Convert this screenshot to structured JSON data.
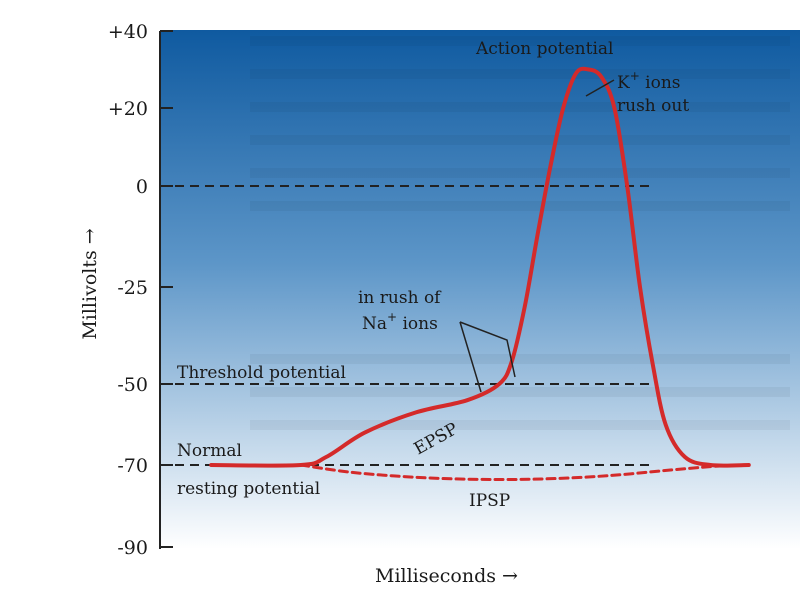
{
  "chart_data": {
    "type": "line",
    "title": "",
    "xlabel": "Milliseconds",
    "ylabel": "Millivolts",
    "ylim": [
      -90,
      40
    ],
    "xlim": [
      0,
      10
    ],
    "yticks": [
      {
        "value": 40,
        "label": "+40"
      },
      {
        "value": 20,
        "label": "+20"
      },
      {
        "value": 0,
        "label": "0"
      },
      {
        "value": -25,
        "label": "-25"
      },
      {
        "value": -50,
        "label": "-50"
      },
      {
        "value": -70,
        "label": "-70"
      },
      {
        "value": -90,
        "label": "-90"
      }
    ],
    "reference_lines": [
      {
        "value": 0,
        "style": "dashed"
      },
      {
        "value": -50,
        "style": "dashed",
        "label": "Threshold potential"
      },
      {
        "value": -70,
        "style": "dashed",
        "label": [
          "Normal",
          "resting potential"
        ]
      }
    ],
    "series": [
      {
        "style": "solid",
        "color": "#d42a2a",
        "points": [
          [
            0.8,
            -70
          ],
          [
            2.2,
            -70
          ],
          [
            2.6,
            -68
          ],
          [
            3.2,
            -62
          ],
          [
            4.0,
            -57
          ],
          [
            4.8,
            -54
          ],
          [
            5.3,
            -50
          ],
          [
            5.5,
            -44
          ],
          [
            5.7,
            -30
          ],
          [
            5.9,
            -12
          ],
          [
            6.1,
            5
          ],
          [
            6.3,
            20
          ],
          [
            6.5,
            29
          ],
          [
            6.7,
            30
          ],
          [
            6.9,
            28
          ],
          [
            7.1,
            20
          ],
          [
            7.3,
            0
          ],
          [
            7.5,
            -25
          ],
          [
            7.7,
            -45
          ],
          [
            7.9,
            -60
          ],
          [
            8.2,
            -68
          ],
          [
            8.6,
            -70
          ],
          [
            9.2,
            -70
          ]
        ]
      },
      {
        "style": "dashed",
        "color": "#d42a2a",
        "points": [
          [
            2.2,
            -70
          ],
          [
            3.0,
            -71.8
          ],
          [
            4.0,
            -73
          ],
          [
            5.0,
            -73.5
          ],
          [
            6.0,
            -73.4
          ],
          [
            7.0,
            -72.6
          ],
          [
            8.0,
            -71.2
          ],
          [
            8.6,
            -70.4
          ],
          [
            9.0,
            -70
          ]
        ]
      }
    ],
    "annotations": {
      "action_potential": "Action potential",
      "k_ions": [
        "K+ ions",
        "rush out"
      ],
      "na_ions": [
        "in rush of",
        "Na+ ions"
      ],
      "epsp": "EPSP",
      "ipsp": "IPSP"
    },
    "axis_arrow": "→",
    "colors": {
      "background_top": "#0f5aa0",
      "background_bottom": "#ffffff",
      "curve": "#d42a2a"
    }
  }
}
